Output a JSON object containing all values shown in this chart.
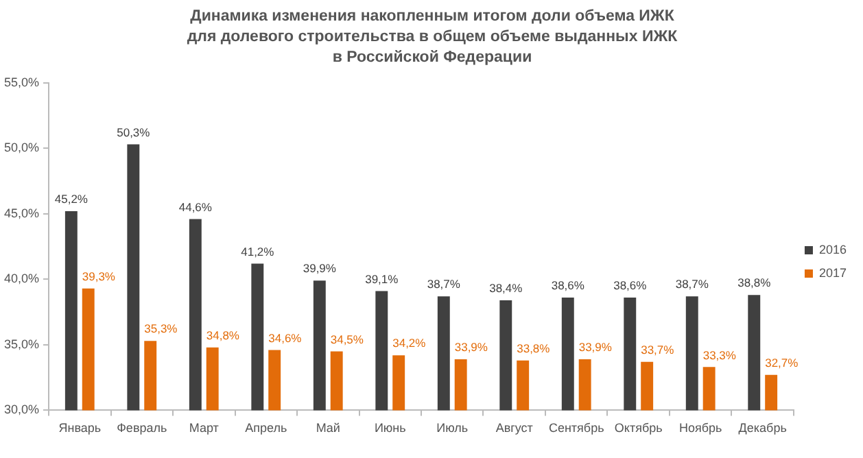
{
  "chart_data": {
    "type": "bar",
    "title": "Динамика изменения накопленным итогом доли объема ИЖК для долевого строительства в общем объеме выданных ИЖК в Российской Федерации",
    "categories": [
      "Январь",
      "Февраль",
      "Март",
      "Апрель",
      "Май",
      "Июнь",
      "Июль",
      "Август",
      "Сентябрь",
      "Октябрь",
      "Ноябрь",
      "Декабрь"
    ],
    "series": [
      {
        "name": "2016",
        "color": "#404040",
        "values": [
          45.2,
          50.3,
          44.6,
          41.2,
          39.9,
          39.1,
          38.7,
          38.4,
          38.6,
          38.6,
          38.7,
          38.8
        ],
        "value_labels": [
          "45,2%",
          "50,3%",
          "44,6%",
          "41,2%",
          "39,9%",
          "39,1%",
          "38,7%",
          "38,4%",
          "38,6%",
          "38,6%",
          "38,7%",
          "38,8%"
        ]
      },
      {
        "name": "2017",
        "color": "#e36c0a",
        "values": [
          39.3,
          35.3,
          34.8,
          34.6,
          34.5,
          34.2,
          33.9,
          33.8,
          33.9,
          33.7,
          33.3,
          32.7
        ],
        "value_labels": [
          "39,3%",
          "35,3%",
          "34,8%",
          "34,6%",
          "34,5%",
          "34,2%",
          "33,9%",
          "33,8%",
          "33,9%",
          "33,7%",
          "33,3%",
          "32,7%"
        ]
      }
    ],
    "ylim": [
      30,
      55
    ],
    "yticks": [
      {
        "value": 30,
        "label": "30,0%"
      },
      {
        "value": 35,
        "label": "35,0%"
      },
      {
        "value": 40,
        "label": "40,0%"
      },
      {
        "value": 45,
        "label": "45,0%"
      },
      {
        "value": 50,
        "label": "50,0%"
      },
      {
        "value": 55,
        "label": "55,0%"
      }
    ],
    "grid": false,
    "legend": "right"
  }
}
